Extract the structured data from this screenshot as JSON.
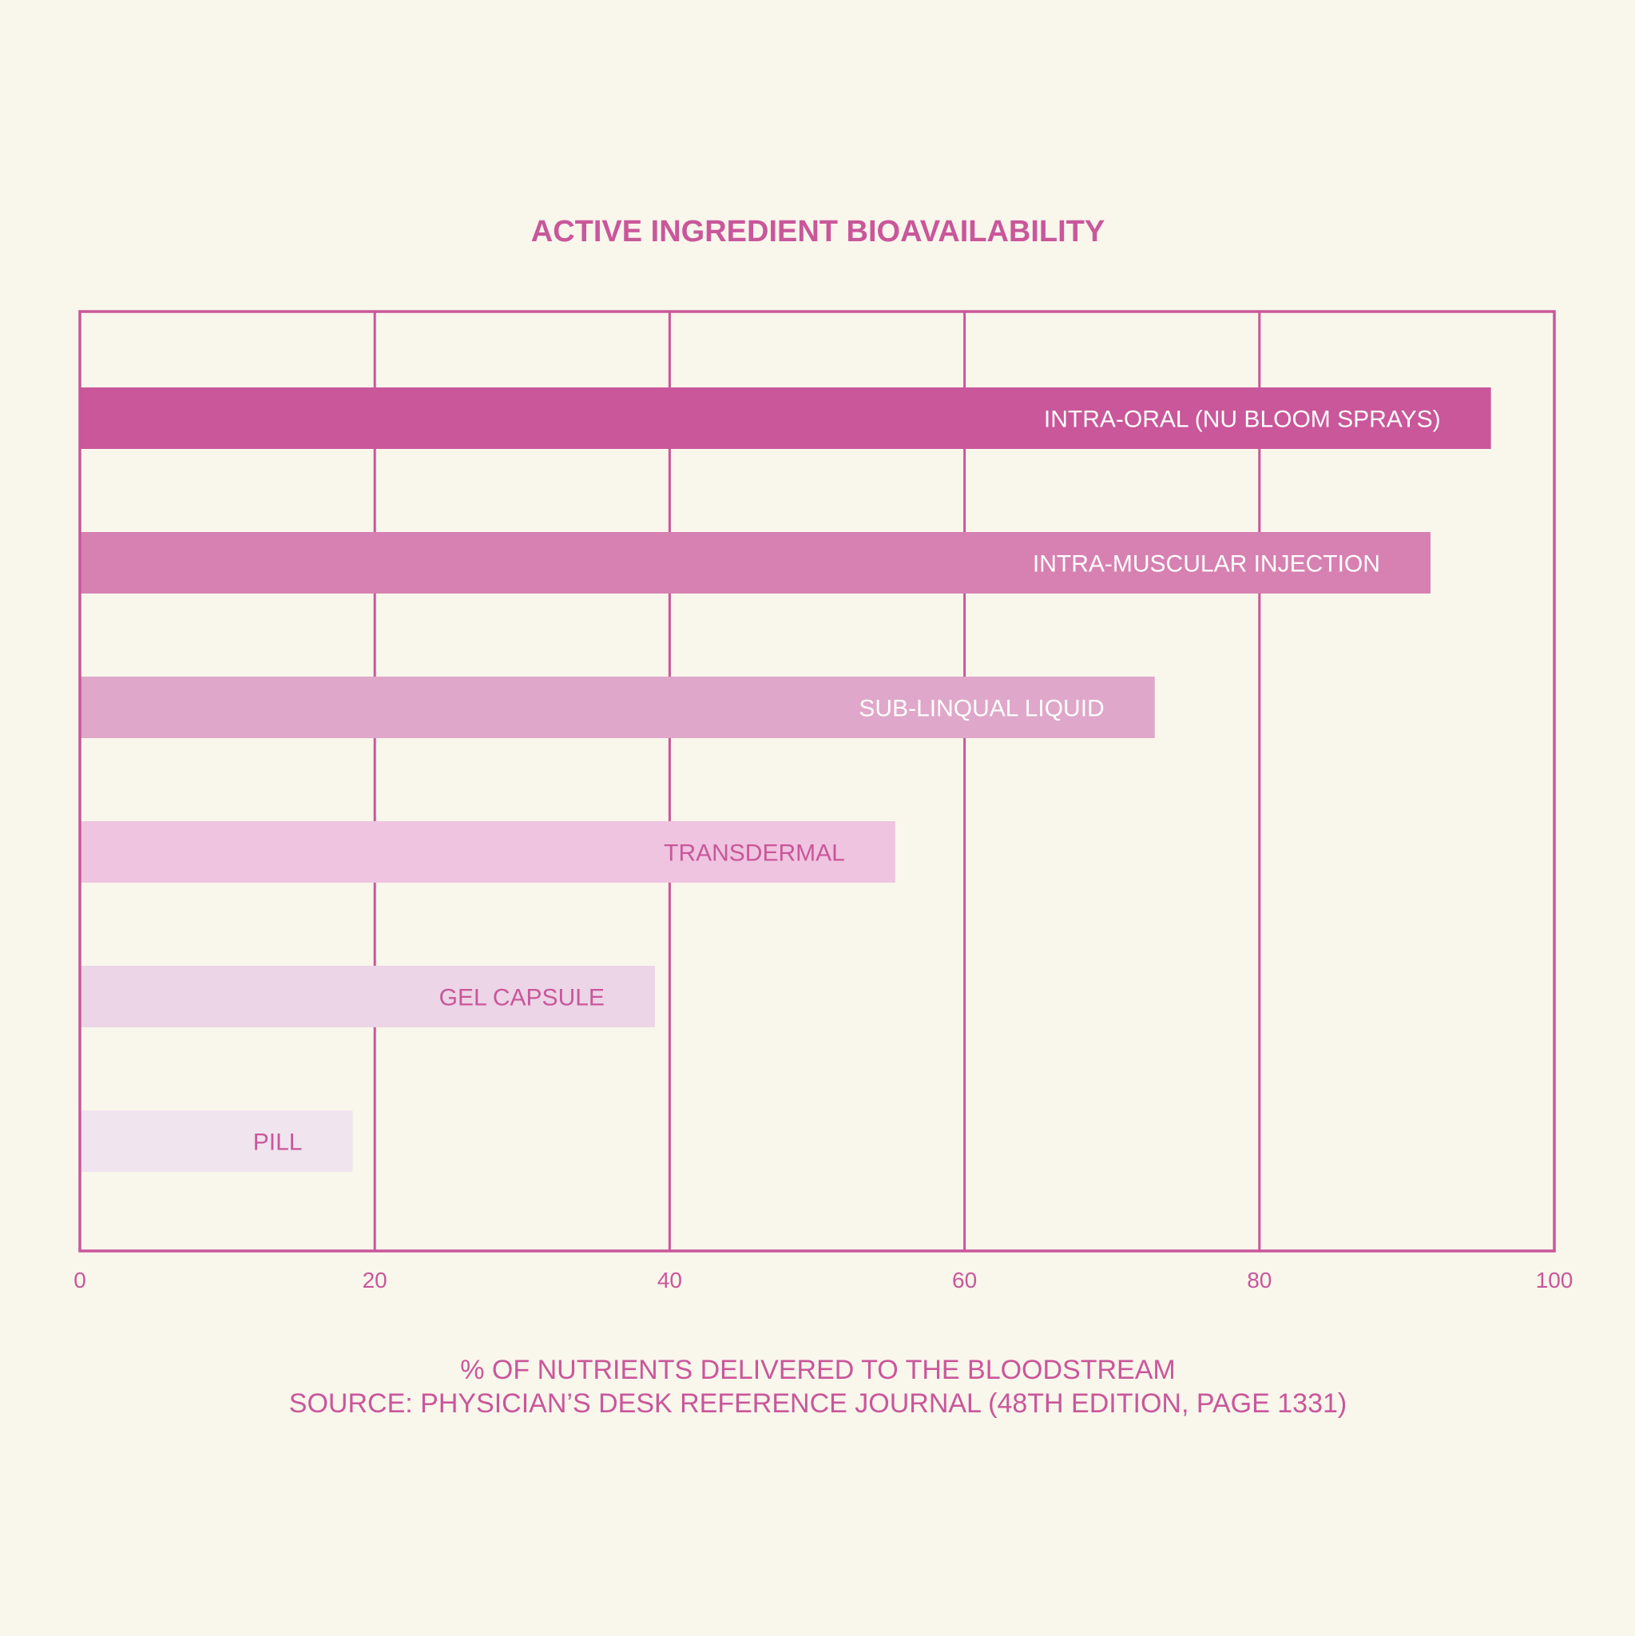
{
  "chart_data": {
    "type": "bar",
    "orientation": "horizontal",
    "title": "ACTIVE INGREDIENT BIOAVAILABILITY",
    "xlabel": "% OF NUTRIENTS DELIVERED TO THE BLOODSTREAM",
    "source": "SOURCE: PHYSICIAN’S DESK REFERENCE JOURNAL (48TH EDITION, PAGE 1331)",
    "categories": [
      "INTRA-ORAL (NU BLOOM SPRAYS)",
      "INTRA-MUSCULAR INJECTION",
      "SUB-LINQUAL LIQUID",
      "TRANSDERMAL",
      "GEL CAPSULE",
      "PILL"
    ],
    "values": [
      95.7,
      91.6,
      72.9,
      55.3,
      39.0,
      18.5
    ],
    "colors": [
      "#c9579a",
      "#d681b1",
      "#dfa7c9",
      "#efc4e0",
      "#ecd5e6",
      "#f0e4ef"
    ],
    "label_colors": [
      "#ffffff",
      "#ffffff",
      "#ffffff",
      "#c9579a",
      "#c9579a",
      "#c9579a"
    ],
    "xlim": [
      0,
      100
    ],
    "xticks": [
      0,
      20,
      40,
      60,
      80,
      100
    ],
    "xtick_labels": [
      "0",
      "20",
      "40",
      "60",
      "80",
      "100"
    ],
    "grid": "vertical",
    "frame_color": "#c9579a",
    "legend": "none"
  }
}
